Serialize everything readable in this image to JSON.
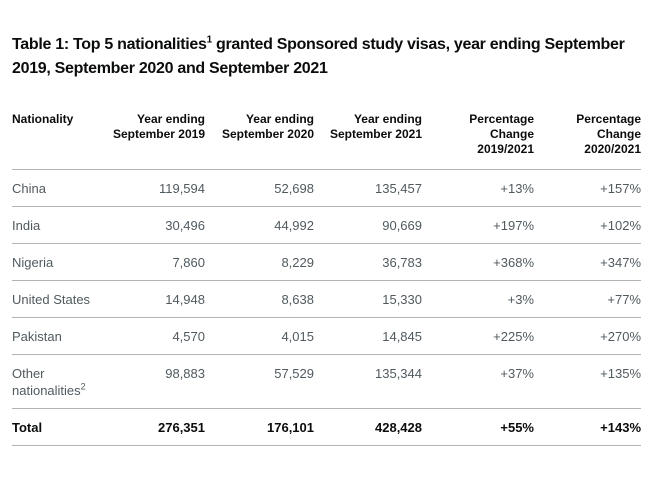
{
  "colors": {
    "text_dark": "#0b0c0c",
    "text_muted": "#505a5f",
    "rule": "#b1b4b6",
    "background": "#ffffff"
  },
  "title": {
    "prefix": "Table 1: Top 5 nationalities",
    "footnote_marker": "1",
    "suffix": " granted Sponsored study visas, year ending September 2019, September 2020 and September 2021"
  },
  "table": {
    "headers": [
      {
        "lines": [
          "Nationality"
        ]
      },
      {
        "lines": [
          "Year ending",
          "September 2019"
        ]
      },
      {
        "lines": [
          "Year ending",
          "September 2020"
        ]
      },
      {
        "lines": [
          "Year ending",
          "September 2021"
        ]
      },
      {
        "lines": [
          "Percentage",
          "Change",
          "2019/2021"
        ]
      },
      {
        "lines": [
          "Percentage",
          "Change",
          "2020/2021"
        ]
      }
    ],
    "rows": [
      {
        "label": "China",
        "footnote_marker": "",
        "values": [
          "119,594",
          "52,698",
          "135,457",
          "+13%",
          "+157%"
        ],
        "bold": false
      },
      {
        "label": "India",
        "footnote_marker": "",
        "values": [
          "30,496",
          "44,992",
          "90,669",
          "+197%",
          "+102%"
        ],
        "bold": false
      },
      {
        "label": "Nigeria",
        "footnote_marker": "",
        "values": [
          "7,860",
          "8,229",
          "36,783",
          "+368%",
          "+347%"
        ],
        "bold": false
      },
      {
        "label": "United States",
        "footnote_marker": "",
        "values": [
          "14,948",
          "8,638",
          "15,330",
          "+3%",
          "+77%"
        ],
        "bold": false
      },
      {
        "label": "Pakistan",
        "footnote_marker": "",
        "values": [
          "4,570",
          "4,015",
          "14,845",
          "+225%",
          "+270%"
        ],
        "bold": false
      },
      {
        "label": "Other nationalities",
        "footnote_marker": "2",
        "values": [
          "98,883",
          "57,529",
          "135,344",
          "+37%",
          "+135%"
        ],
        "bold": false
      },
      {
        "label": "Total",
        "footnote_marker": "",
        "values": [
          "276,351",
          "176,101",
          "428,428",
          "+55%",
          "+143%"
        ],
        "bold": true
      }
    ]
  }
}
